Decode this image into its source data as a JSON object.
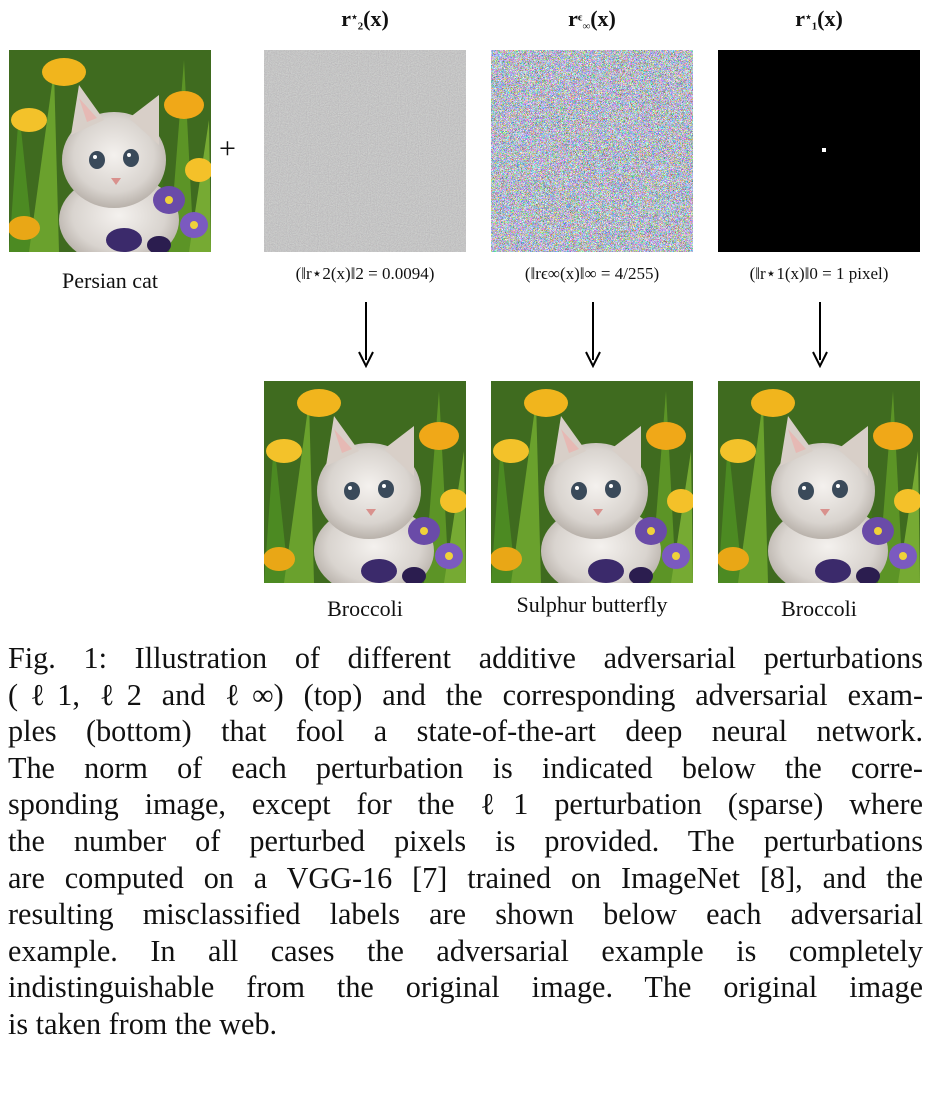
{
  "figure": {
    "original": {
      "label": "Persian cat"
    },
    "plus_sign": "+",
    "perturbations": [
      {
        "title_main": "r",
        "title_sub": "2",
        "title_sup": "⋆",
        "title_arg": "(x)",
        "norm_text": "(‖r⋆2(x)‖2 = 0.0094)",
        "style": "gray-noise"
      },
      {
        "title_main": "r",
        "title_sub": "∞",
        "title_sup": "ϵ",
        "title_arg": "(x)",
        "norm_text": "(‖rϵ∞(x)‖∞ = 4/255)",
        "style": "color-noise"
      },
      {
        "title_main": "r",
        "title_sub": "1",
        "title_sup": "⋆",
        "title_arg": "(x)",
        "norm_text": "(‖r⋆1(x)‖0 = 1 pixel)",
        "style": "single-pixel"
      }
    ],
    "adversarial_labels": [
      "Broccoli",
      "Sulphur butterfly",
      "Broccoli"
    ]
  },
  "caption": {
    "lines": [
      "Fig. 1: Illustration of different additive adversarial perturbations",
      "(ℓ1, ℓ2 and ℓ∞) (top) and the corresponding adversarial exam-",
      "ples (bottom) that fool a state-of-the-art deep neural network.",
      "The norm of each perturbation is indicated below the corre-",
      "sponding image, except for the ℓ1 perturbation (sparse) where",
      "the number of perturbed pixels is provided. The perturbations",
      "are computed on a VGG-16 [7] trained on ImageNet [8], and the",
      "resulting misclassified labels are shown below each adversarial",
      "example. In all cases the adversarial example is completely",
      "indistinguishable from the original image. The original image",
      "is taken from the web."
    ]
  }
}
